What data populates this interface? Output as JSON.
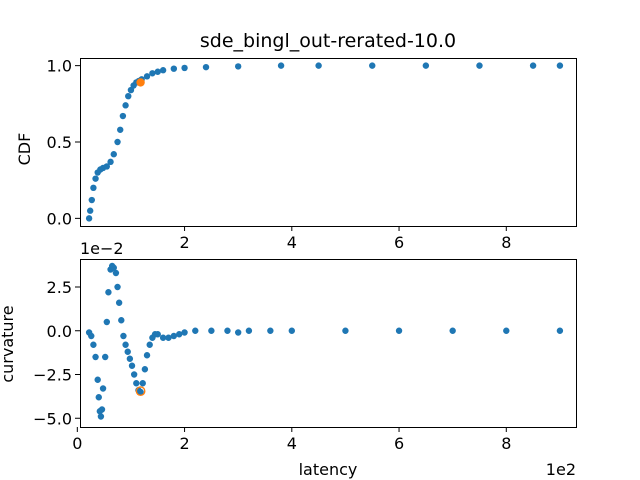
{
  "colors": {
    "series": "#1f77b4",
    "highlight": "#ff7f0e"
  },
  "chart_data": [
    {
      "type": "scatter",
      "title": "sde_bingl_out-rerated-10.0",
      "xlabel": "",
      "ylabel": "CDF",
      "grid": false,
      "xlim": [
        0.05,
        9.3
      ],
      "ylim": [
        -0.05,
        1.05
      ],
      "xticks": [
        2,
        4,
        6,
        8
      ],
      "xtick_labels": [
        "2",
        "4",
        "6",
        "8"
      ],
      "yticks": [
        0.0,
        0.5,
        1.0
      ],
      "ytick_labels": [
        "0.0",
        "0.5",
        "1.0"
      ],
      "x_offset_text": "",
      "y_offset_text": "",
      "series": [
        {
          "x": [
            0.22,
            0.24,
            0.27,
            0.3,
            0.34,
            0.38,
            0.43,
            0.48,
            0.55,
            0.62,
            0.68,
            0.75,
            0.8,
            0.85,
            0.9,
            0.95,
            1.0,
            1.05,
            1.1,
            1.15,
            1.2,
            1.3,
            1.4,
            1.5,
            1.6,
            1.8,
            2.0,
            2.4,
            3.0,
            3.8,
            4.5,
            5.5,
            6.5,
            7.5,
            8.5,
            9.0
          ],
          "y": [
            0.0,
            0.05,
            0.12,
            0.2,
            0.26,
            0.3,
            0.32,
            0.33,
            0.34,
            0.37,
            0.42,
            0.5,
            0.58,
            0.67,
            0.74,
            0.8,
            0.84,
            0.87,
            0.89,
            0.9,
            0.91,
            0.93,
            0.95,
            0.96,
            0.97,
            0.98,
            0.985,
            0.99,
            0.995,
            1.0,
            1.0,
            1.0,
            1.0,
            1.0,
            1.0,
            1.0
          ]
        }
      ],
      "highlight": {
        "x": 1.18,
        "y": 0.89
      }
    },
    {
      "type": "scatter",
      "title": "",
      "xlabel": "latency",
      "ylabel": "curvature",
      "grid": false,
      "xlim": [
        0.05,
        9.3
      ],
      "ylim": [
        -0.055,
        0.041
      ],
      "xticks": [
        0,
        2,
        4,
        6,
        8
      ],
      "xtick_labels": [
        "0",
        "2",
        "4",
        "6",
        "8"
      ],
      "yticks": [
        -0.05,
        -0.025,
        0.0,
        0.025
      ],
      "ytick_labels": [
        "−5.0",
        "−2.5",
        "0.0",
        "2.5"
      ],
      "x_offset_text": "1e2",
      "y_offset_text": "1e−2",
      "series": [
        {
          "x": [
            0.22,
            0.26,
            0.3,
            0.34,
            0.38,
            0.4,
            0.42,
            0.44,
            0.46,
            0.48,
            0.52,
            0.55,
            0.58,
            0.62,
            0.65,
            0.68,
            0.72,
            0.75,
            0.78,
            0.82,
            0.86,
            0.9,
            0.94,
            0.98,
            1.02,
            1.06,
            1.1,
            1.14,
            1.18,
            1.22,
            1.26,
            1.3,
            1.35,
            1.4,
            1.45,
            1.5,
            1.6,
            1.7,
            1.8,
            1.9,
            2.0,
            2.2,
            2.5,
            2.8,
            3.0,
            3.2,
            3.6,
            4.0,
            5.0,
            6.0,
            7.0,
            8.0,
            9.0
          ],
          "y": [
            -0.001,
            -0.003,
            -0.008,
            -0.015,
            -0.028,
            -0.038,
            -0.046,
            -0.049,
            -0.045,
            -0.033,
            -0.015,
            0.005,
            0.022,
            0.035,
            0.037,
            0.036,
            0.033,
            0.025,
            0.016,
            0.006,
            -0.003,
            -0.008,
            -0.012,
            -0.016,
            -0.02,
            -0.025,
            -0.03,
            -0.034,
            -0.035,
            -0.03,
            -0.022,
            -0.014,
            -0.008,
            -0.004,
            -0.002,
            -0.002,
            -0.004,
            -0.004,
            -0.003,
            -0.002,
            -0.001,
            0.0,
            0.0,
            0.0,
            -0.001,
            0.0,
            0.0,
            0.0,
            0.0,
            0.0,
            0.0,
            0.0,
            0.0
          ]
        }
      ],
      "highlight": {
        "x": 1.18,
        "y": -0.0345
      }
    }
  ]
}
